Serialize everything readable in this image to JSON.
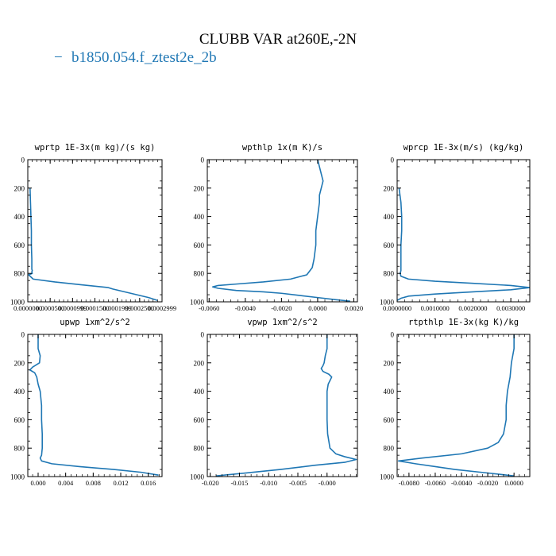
{
  "title": "CLUBB VAR at260E,-2N",
  "legend": {
    "marker": "−",
    "label": "b1850.054.f_ztest2e_2b",
    "color": "#1f77b4"
  },
  "line_color": "#1f77b4",
  "chart_data": [
    {
      "type": "line",
      "title": "wprtp  1E-3x(m kg)/(s kg)",
      "xlim": [
        0.0,
        0.0003
      ],
      "ylim": [
        1000,
        0
      ],
      "y_ticks": [
        0,
        200,
        400,
        600,
        800,
        1000
      ],
      "y_tick_labels": [
        "0",
        "200",
        "400",
        "600",
        "800",
        "1000"
      ],
      "x_ticks": [
        0.0,
        5e-05,
        0.0001,
        0.00015,
        0.0002,
        0.00025,
        0.0003
      ],
      "x_tick_labels": [
        "0.0000000",
        "0.0000500",
        "0.0000999",
        "0.0001500",
        "0.0001999",
        "0.0002500",
        "0.0002999"
      ],
      "series": [
        {
          "x": [
            5e-06,
            6e-06,
            7e-06,
            8e-06,
            8e-06,
            9e-06,
            9e-06,
            9e-06,
            1e-05,
            9e-06,
            1e-05,
            2e-06,
            1.2e-05,
            6e-05,
            0.00012,
            0.00018,
            0.00019,
            0.00023,
            0.00027,
            0.00029
          ],
          "y": [
            200,
            300,
            400,
            500,
            600,
            700,
            750,
            770,
            780,
            790,
            800,
            810,
            840,
            860,
            880,
            900,
            910,
            940,
            970,
            990
          ]
        }
      ]
    },
    {
      "type": "line",
      "title": "wpthlp  1x(m K)/s",
      "xlim": [
        -0.0061,
        0.0022
      ],
      "ylim": [
        1000,
        0
      ],
      "y_ticks": [
        0,
        200,
        400,
        600,
        800,
        1000
      ],
      "y_tick_labels": [
        "0",
        "200",
        "400",
        "600",
        "800",
        "1000"
      ],
      "x_ticks": [
        -0.006,
        -0.004,
        -0.002,
        0.0,
        0.002
      ],
      "x_tick_labels": [
        "-0.0060",
        "-0.0040",
        "-0.0020",
        "0.0000",
        "0.0020"
      ],
      "series": [
        {
          "x": [
            0.0,
            0.0001,
            0.0002,
            0.0003,
            0.0002,
            0.0001,
            0.0001,
            0.0,
            -0.0001,
            -0.0001,
            -0.0002,
            -0.0003,
            -0.0006,
            -0.0015,
            -0.003,
            -0.0045,
            -0.0055,
            -0.0058,
            -0.0055,
            -0.0045,
            -0.003,
            -0.002,
            -0.001,
            0.0,
            0.001,
            0.0018
          ],
          "y": [
            0,
            50,
            100,
            150,
            200,
            250,
            300,
            400,
            500,
            600,
            700,
            760,
            810,
            840,
            860,
            875,
            885,
            895,
            905,
            920,
            930,
            940,
            955,
            970,
            985,
            995
          ]
        }
      ]
    },
    {
      "type": "line",
      "title": "wprcp  1E-3x(m/s) (kg/kg)",
      "xlim": [
        0.0,
        0.0035
      ],
      "ylim": [
        1000,
        0
      ],
      "y_ticks": [
        0,
        200,
        400,
        600,
        800,
        1000
      ],
      "y_tick_labels": [
        "0",
        "200",
        "400",
        "600",
        "800",
        "1000"
      ],
      "x_ticks": [
        0.0,
        0.001,
        0.002,
        0.003
      ],
      "x_tick_labels": [
        "0.0000000",
        "0.0010000",
        "0.0020000",
        "0.0030000"
      ],
      "series": [
        {
          "x": [
            5e-05,
            0.0001,
            0.00012,
            0.00012,
            0.0001,
            0.0001,
            0.0001,
            8e-05,
            0.0001,
            0.0003,
            0.001,
            0.002,
            0.003,
            0.0035,
            0.003,
            0.002,
            0.001,
            0.0003,
            0.0001,
            0.0
          ],
          "y": [
            200,
            300,
            400,
            500,
            600,
            700,
            780,
            800,
            820,
            840,
            855,
            870,
            885,
            900,
            915,
            930,
            945,
            960,
            975,
            990
          ]
        }
      ]
    },
    {
      "type": "line",
      "title": "upwp  1xm^2/s^2",
      "xlim": [
        -0.0015,
        0.018
      ],
      "ylim": [
        1000,
        0
      ],
      "y_ticks": [
        0,
        200,
        400,
        600,
        800,
        1000
      ],
      "y_tick_labels": [
        "0",
        "200",
        "400",
        "600",
        "800",
        "1000"
      ],
      "x_ticks": [
        0.0,
        0.004,
        0.008,
        0.012,
        0.016
      ],
      "x_tick_labels": [
        "0.000",
        "0.004",
        "0.008",
        "0.012",
        "0.016"
      ],
      "series": [
        {
          "x": [
            0.0,
            0.0,
            0.0003,
            0.0002,
            -0.0008,
            -0.0012,
            -0.0005,
            -0.0002,
            0.0,
            0.0003,
            0.0005,
            0.0005,
            0.0006,
            0.0006,
            0.0005,
            0.0003,
            0.0005,
            0.002,
            0.006,
            0.011,
            0.015,
            0.0175
          ],
          "y": [
            0,
            100,
            150,
            200,
            230,
            250,
            270,
            300,
            350,
            400,
            500,
            600,
            700,
            800,
            850,
            870,
            890,
            910,
            930,
            950,
            970,
            990
          ]
        }
      ]
    },
    {
      "type": "line",
      "title": "vpwp  1xm^2/s^2",
      "xlim": [
        -0.0205,
        0.0052
      ],
      "ylim": [
        1000,
        0
      ],
      "y_ticks": [
        0,
        200,
        400,
        600,
        800,
        1000
      ],
      "y_tick_labels": [
        "0",
        "200",
        "400",
        "600",
        "800",
        "1000"
      ],
      "x_ticks": [
        -0.02,
        -0.015,
        -0.01,
        -0.005,
        0.0
      ],
      "x_tick_labels": [
        "-0.020",
        "-0.015",
        "-0.010",
        "-0.005",
        "-0.000"
      ],
      "series": [
        {
          "x": [
            0.0,
            0.0,
            -0.0003,
            -0.0005,
            -0.0007,
            -0.001,
            -0.0007,
            0.0003,
            0.0008,
            0.0002,
            0.0,
            0.0,
            0.0,
            0.0001,
            0.0005,
            0.0015,
            0.003,
            0.005,
            0.003,
            -0.002,
            -0.008,
            -0.014,
            -0.019
          ],
          "y": [
            0,
            100,
            150,
            200,
            220,
            240,
            260,
            280,
            300,
            350,
            400,
            500,
            600,
            700,
            800,
            840,
            860,
            880,
            900,
            920,
            950,
            975,
            995
          ]
        }
      ]
    },
    {
      "type": "line",
      "title": "rtpthlp  1E-3x(kg K)/kg",
      "xlim": [
        -0.0089,
        0.0012
      ],
      "ylim": [
        1000,
        0
      ],
      "y_ticks": [
        0,
        200,
        400,
        600,
        800,
        1000
      ],
      "y_tick_labels": [
        "0",
        "200",
        "400",
        "600",
        "800",
        "1000"
      ],
      "x_ticks": [
        -0.008,
        -0.006,
        -0.004,
        -0.002,
        0.0
      ],
      "x_tick_labels": [
        "-0.0080",
        "-0.0060",
        "-0.0040",
        "-0.0020",
        "0.0000"
      ],
      "series": [
        {
          "x": [
            0.0,
            0.0,
            -0.0002,
            -0.0003,
            -0.0005,
            -0.0006,
            -0.0006,
            -0.0008,
            -0.0012,
            -0.002,
            -0.004,
            -0.007,
            -0.0088,
            -0.0075,
            -0.006,
            -0.0045,
            -0.0025,
            -0.001,
            0.0
          ],
          "y": [
            0,
            100,
            200,
            300,
            400,
            500,
            600,
            700,
            760,
            800,
            840,
            870,
            890,
            910,
            930,
            950,
            970,
            985,
            995
          ]
        }
      ]
    }
  ]
}
